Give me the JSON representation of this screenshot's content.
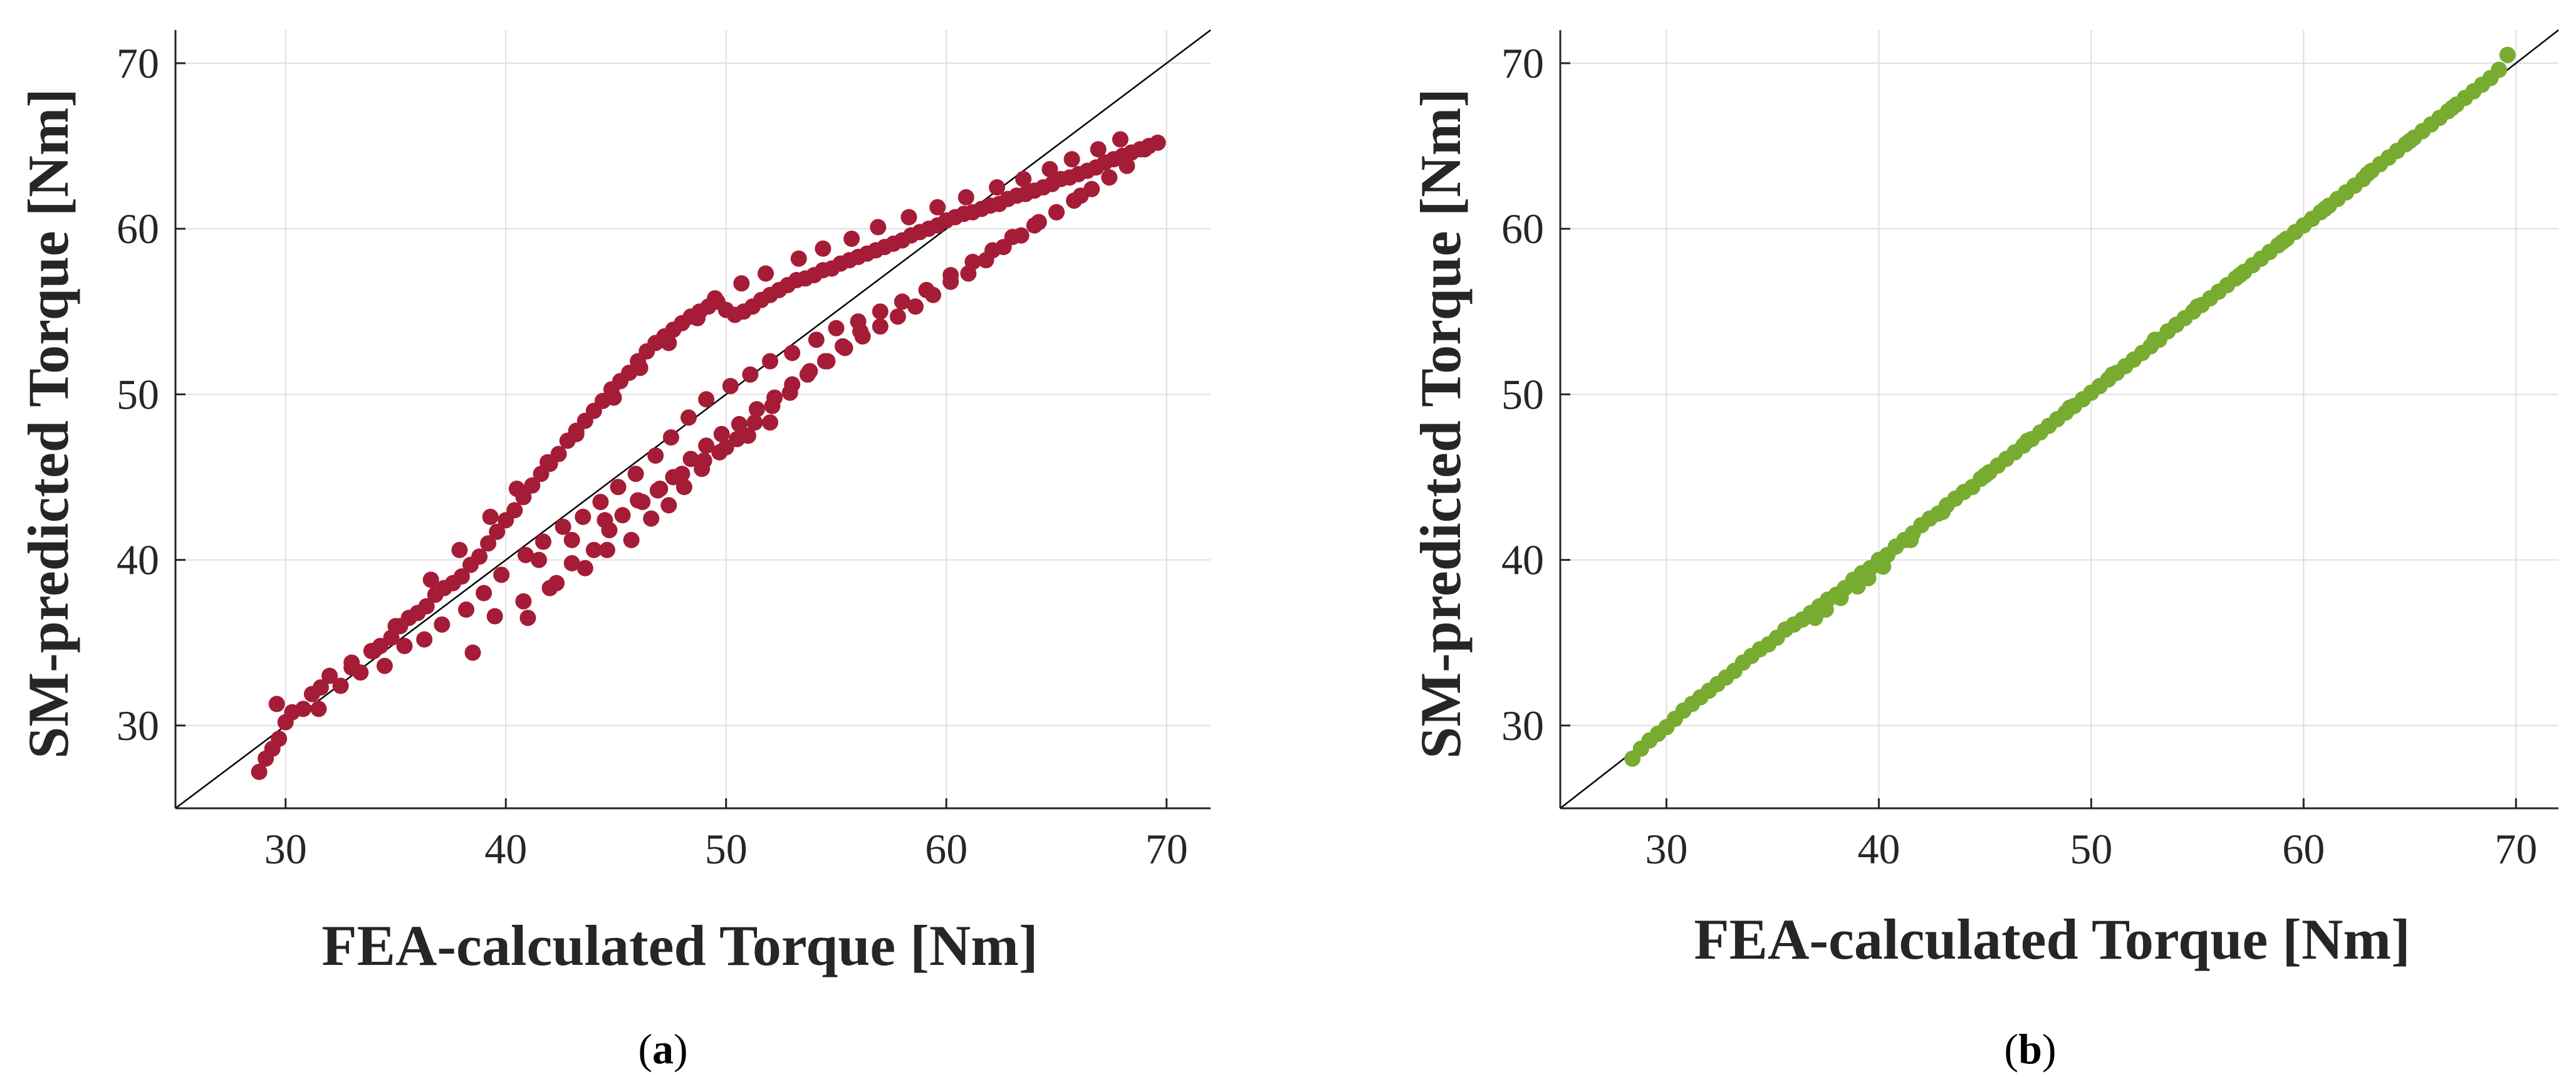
{
  "chart_data": [
    {
      "type": "scatter",
      "panel": "a",
      "caption": {
        "open": "(",
        "letter": "a",
        "close": ")"
      },
      "title": "",
      "xlabel": "FEA-calculated Torque [Nm]",
      "ylabel": "SM-predicted Torque [Nm]",
      "xlim": [
        25,
        72
      ],
      "ylim": [
        25,
        72
      ],
      "xticks": [
        30,
        40,
        50,
        60,
        70
      ],
      "yticks": [
        30,
        40,
        50,
        60,
        70
      ],
      "xtick_labels": [
        "30",
        "40",
        "50",
        "60",
        "70"
      ],
      "ytick_labels": [
        "30",
        "40",
        "50",
        "60",
        "70"
      ],
      "grid": true,
      "reference_line": "y = x",
      "marker_color": "#a51c36",
      "series": [
        {
          "x": [
            28.8,
            29.1,
            29.4,
            29.7,
            30.0,
            30.3,
            29.6,
            30.8,
            31.2,
            31.6,
            32.0,
            32.5,
            33.0,
            33.4,
            33.9,
            34.3,
            34.8,
            35.2,
            35.6,
            36.0,
            36.4,
            36.8,
            37.2,
            37.6,
            38.0,
            38.4,
            38.8,
            39.2,
            39.6,
            40.0,
            40.4,
            40.8,
            41.2,
            41.6,
            42.0,
            42.4,
            42.8,
            43.2,
            43.6,
            44.0,
            44.4,
            44.8,
            45.2,
            45.6,
            46.0,
            46.4,
            46.8,
            47.2,
            47.6,
            48.0,
            48.4,
            48.8,
            49.2,
            49.6,
            50.0,
            50.4,
            50.8,
            51.2,
            51.6,
            52.0,
            52.4,
            52.8,
            53.2,
            53.6,
            54.0,
            54.4,
            54.8,
            55.2,
            55.6,
            56.0,
            56.4,
            56.8,
            57.2,
            57.6,
            58.0,
            58.4,
            58.8,
            59.2,
            59.6,
            60.0,
            60.4,
            60.8,
            61.2,
            61.6,
            62.0,
            62.4,
            62.8,
            63.2,
            63.6,
            64.0,
            64.4,
            64.8,
            65.2,
            65.6,
            66.0,
            66.4,
            66.8,
            67.2,
            67.6,
            68.0,
            68.4,
            68.8,
            69.2,
            69.6,
            34.5,
            35.4,
            36.3,
            37.1,
            38.2,
            39.0,
            39.8,
            40.9,
            41.7,
            42.6,
            43.5,
            44.3,
            45.1,
            45.9,
            46.8,
            47.5,
            48.3,
            49.1,
            50.2,
            51.1,
            52.0,
            53.0,
            54.1,
            55.0,
            56.0,
            57.0,
            58.0,
            59.1,
            60.2,
            61.2,
            62.1,
            63.0,
            64.0,
            65.0,
            66.1,
            41.0,
            42.0,
            43.0,
            44.0,
            44.7,
            45.3,
            46.2,
            46.9,
            47.6,
            48.4,
            49.1,
            49.8,
            50.6,
            51.4,
            52.2,
            53.0,
            53.8,
            54.6,
            55.4,
            56.2,
            57.0,
            57.8,
            58.6,
            59.4,
            60.2,
            61.0,
            61.8,
            62.6,
            63.4,
            64.2,
            65.0,
            65.8,
            66.6,
            67.4,
            68.2,
            69.0,
            31.5,
            33.0,
            34.0,
            35.0,
            36.6,
            37.9,
            39.3,
            40.5,
            41.9,
            43.2,
            44.9,
            46.1,
            47.4,
            48.7,
            49.5,
            50.7,
            51.8,
            53.3,
            54.4,
            55.7,
            56.9,
            58.3,
            59.6,
            60.9,
            62.3,
            63.5,
            64.7,
            65.7,
            66.9,
            67.9,
            38.5,
            39.5,
            40.8,
            42.3,
            43.6,
            44.6,
            45.7,
            46.6,
            47.4,
            48.1,
            48.9,
            49.7,
            50.5,
            51.3,
            52.1,
            52.9,
            53.7,
            54.5,
            55.3,
            56.1,
            41.5,
            43.0,
            44.5,
            46.0,
            47.0,
            48.0,
            49.0,
            50.0,
            51.0,
            52.0
          ],
          "y": [
            27.2,
            28.0,
            28.6,
            29.2,
            30.2,
            30.8,
            31.3,
            31.0,
            31.9,
            32.3,
            33.0,
            32.4,
            33.8,
            33.2,
            34.5,
            34.8,
            35.3,
            36.0,
            36.5,
            36.8,
            37.2,
            37.9,
            38.3,
            38.6,
            39.0,
            39.7,
            40.2,
            41.0,
            41.7,
            42.4,
            43.0,
            43.8,
            44.5,
            45.2,
            45.8,
            46.4,
            47.2,
            47.8,
            48.4,
            49.0,
            49.6,
            50.3,
            50.8,
            51.3,
            52.0,
            52.6,
            53.1,
            53.5,
            53.9,
            54.3,
            54.7,
            55.0,
            55.3,
            55.6,
            55.1,
            54.8,
            55.0,
            55.3,
            55.7,
            56.0,
            56.3,
            56.6,
            56.9,
            57.0,
            57.2,
            57.5,
            57.6,
            57.9,
            58.1,
            58.3,
            58.5,
            58.7,
            58.9,
            59.1,
            59.3,
            59.6,
            59.8,
            60.0,
            60.2,
            60.5,
            60.7,
            60.9,
            61.0,
            61.2,
            61.4,
            61.5,
            61.8,
            62.0,
            62.1,
            62.3,
            62.5,
            62.7,
            63.0,
            63.1,
            63.3,
            63.5,
            63.7,
            64.0,
            64.2,
            64.4,
            64.6,
            64.8,
            65.0,
            65.2,
            33.6,
            34.8,
            35.2,
            36.1,
            37.0,
            38.0,
            39.1,
            40.3,
            41.1,
            42.0,
            42.6,
            43.5,
            44.4,
            45.2,
            46.3,
            47.4,
            48.6,
            49.7,
            50.5,
            51.2,
            52.0,
            52.5,
            53.3,
            54.0,
            54.4,
            55.0,
            55.6,
            56.3,
            57.2,
            58.0,
            58.7,
            59.5,
            60.2,
            61.0,
            62.0,
            36.5,
            38.3,
            39.8,
            40.6,
            41.8,
            42.7,
            43.5,
            44.2,
            45.0,
            46.1,
            46.9,
            47.6,
            48.2,
            49.1,
            49.8,
            50.6,
            51.4,
            52.0,
            52.8,
            53.5,
            54.1,
            54.7,
            55.3,
            56.0,
            56.8,
            57.3,
            58.1,
            58.9,
            59.6,
            60.4,
            61.0,
            61.7,
            62.4,
            63.1,
            63.8,
            64.8,
            31.0,
            33.5,
            34.5,
            36.0,
            38.8,
            40.6,
            42.6,
            44.3,
            45.9,
            47.6,
            49.8,
            51.6,
            53.1,
            54.6,
            55.8,
            56.7,
            57.3,
            58.2,
            58.8,
            59.4,
            60.1,
            60.7,
            61.3,
            61.9,
            62.5,
            63.0,
            63.6,
            64.2,
            64.8,
            65.4,
            34.4,
            36.6,
            37.5,
            38.6,
            39.5,
            40.6,
            41.2,
            42.5,
            43.3,
            44.4,
            45.5,
            46.5,
            47.3,
            48.3,
            49.3,
            50.1,
            51.2,
            52.0,
            52.9,
            53.8,
            40.0,
            41.2,
            42.4,
            43.6,
            44.3,
            45.2,
            46.0,
            46.8,
            47.5,
            48.3
          ]
        }
      ]
    },
    {
      "type": "scatter",
      "panel": "b",
      "caption": {
        "open": "(",
        "letter": "b",
        "close": ")"
      },
      "title": "",
      "xlabel": "FEA-calculated Torque [Nm]",
      "ylabel": "SM-predicted Torque [Nm]",
      "xlim": [
        25,
        72
      ],
      "ylim": [
        25,
        72
      ],
      "xticks": [
        30,
        40,
        50,
        60,
        70
      ],
      "yticks": [
        30,
        40,
        50,
        60,
        70
      ],
      "xtick_labels": [
        "30",
        "40",
        "50",
        "60",
        "70"
      ],
      "ytick_labels": [
        "30",
        "40",
        "50",
        "60",
        "70"
      ],
      "grid": true,
      "reference_line": "y = x",
      "marker_color": "#77ac30",
      "series": [
        {
          "x": [
            28.4,
            28.8,
            29.2,
            29.6,
            30.0,
            30.4,
            30.8,
            31.2,
            31.6,
            32.0,
            32.4,
            32.8,
            33.2,
            33.6,
            34.0,
            34.4,
            34.8,
            35.2,
            35.6,
            36.0,
            36.4,
            36.8,
            37.2,
            37.6,
            38.0,
            38.4,
            38.8,
            39.2,
            39.6,
            40.0,
            40.4,
            40.8,
            41.2,
            41.6,
            42.0,
            42.4,
            42.8,
            43.2,
            43.6,
            44.0,
            44.4,
            44.8,
            45.2,
            45.6,
            46.0,
            46.4,
            46.8,
            47.2,
            47.6,
            48.0,
            48.4,
            48.8,
            49.2,
            49.6,
            50.0,
            50.4,
            50.8,
            51.2,
            51.6,
            52.0,
            52.4,
            52.8,
            53.2,
            53.6,
            54.0,
            54.4,
            54.8,
            55.2,
            55.6,
            56.0,
            56.4,
            56.8,
            57.2,
            57.6,
            58.0,
            58.4,
            58.8,
            59.2,
            59.6,
            60.0,
            60.4,
            60.8,
            61.2,
            61.6,
            62.0,
            62.4,
            62.8,
            63.2,
            63.6,
            64.0,
            64.4,
            64.8,
            65.2,
            65.6,
            66.0,
            66.4,
            66.8,
            67.2,
            67.6,
            68.0,
            68.4,
            68.8,
            69.2,
            69.6,
            37.0,
            37.5,
            38.2,
            39.0,
            39.5,
            40.2,
            41.5,
            43.0,
            45.0,
            47.0,
            49.0,
            51.0,
            53.0,
            55.0,
            57.0,
            59.0,
            61.0,
            63.0,
            65.0,
            67.0
          ],
          "y": [
            28.0,
            28.6,
            29.1,
            29.5,
            29.9,
            30.4,
            30.9,
            31.3,
            31.7,
            32.1,
            32.5,
            32.9,
            33.3,
            33.8,
            34.2,
            34.6,
            34.9,
            35.3,
            35.8,
            36.1,
            36.4,
            36.8,
            37.2,
            37.6,
            37.9,
            38.3,
            38.8,
            39.2,
            39.5,
            40.0,
            40.3,
            40.8,
            41.2,
            41.6,
            42.1,
            42.5,
            42.8,
            43.3,
            43.7,
            44.1,
            44.4,
            44.9,
            45.3,
            45.7,
            46.1,
            46.5,
            46.9,
            47.3,
            47.7,
            48.1,
            48.5,
            48.9,
            49.3,
            49.7,
            50.1,
            50.5,
            50.9,
            51.3,
            51.7,
            52.1,
            52.5,
            52.9,
            53.3,
            53.8,
            54.2,
            54.6,
            55.0,
            55.4,
            55.8,
            56.2,
            56.6,
            57.0,
            57.4,
            57.8,
            58.2,
            58.6,
            59.0,
            59.4,
            59.8,
            60.2,
            60.6,
            61.0,
            61.4,
            61.8,
            62.2,
            62.6,
            63.0,
            63.5,
            63.9,
            64.3,
            64.7,
            65.1,
            65.5,
            65.9,
            66.3,
            66.7,
            67.1,
            67.5,
            67.9,
            68.3,
            68.7,
            69.1,
            69.6,
            70.5,
            36.5,
            37.0,
            37.7,
            38.4,
            38.9,
            39.6,
            41.2,
            42.9,
            45.1,
            47.2,
            49.2,
            51.2,
            53.3,
            55.3,
            57.2,
            59.2,
            61.2,
            63.3,
            65.3,
            67.3
          ]
        }
      ]
    }
  ]
}
